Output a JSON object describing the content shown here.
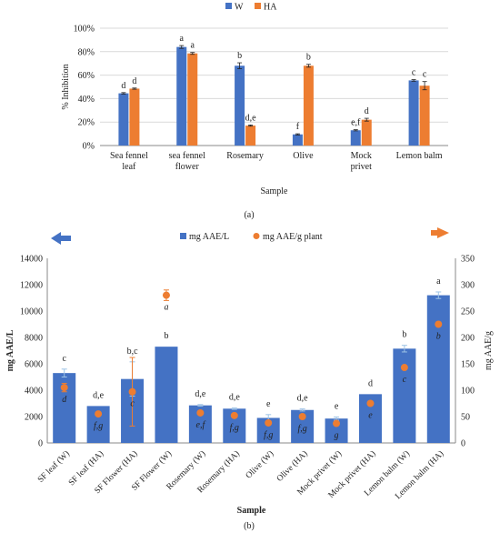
{
  "chart_data": [
    {
      "type": "bar",
      "panel_label": "(a)",
      "legend": {
        "placement": "top-center",
        "entries": [
          "W",
          "HA"
        ]
      },
      "xlabel": "Sample",
      "ylabel": "% Inhibition",
      "ylim": [
        0,
        100
      ],
      "ytick_step": 20,
      "ytick_suffix": "%",
      "grid": true,
      "categories": [
        "Sea fennel leaf",
        "sea fennel flower",
        "Rosemary",
        "Olive",
        "Mock privet",
        "Lemon balm"
      ],
      "series": [
        {
          "name": "W",
          "color": "#4472c4",
          "values": [
            44.5,
            84.0,
            68.0,
            9.5,
            13.0,
            55.5
          ],
          "errors": [
            0.6,
            1.2,
            2.5,
            0.5,
            0.5,
            0.7
          ],
          "letters": [
            "d",
            "a",
            "b",
            "f",
            "e,f",
            "c"
          ]
        },
        {
          "name": "HA",
          "color": "#ed7d31",
          "values": [
            48.5,
            78.5,
            17.0,
            68.0,
            22.0,
            51.0
          ],
          "errors": [
            0.5,
            0.8,
            0.5,
            1.2,
            1.2,
            3.5
          ],
          "letters": [
            "d",
            "a",
            "d,e",
            "b",
            "d",
            "c"
          ]
        }
      ]
    },
    {
      "type": "bar+scatter",
      "panel_label": "(b)",
      "legend": {
        "placement": "top-center",
        "entries": [
          "mg AAE/L",
          "mg AAE/g plant"
        ]
      },
      "xlabel": "Sample",
      "ylabel_left": "mg AAE/L",
      "ylabel_right": "mg AAE/g",
      "ylim_left": [
        0,
        14000
      ],
      "ytick_step_left": 2000,
      "ylim_right": [
        0,
        350
      ],
      "ytick_step_right": 50,
      "grid": false,
      "categories": [
        "SF leaf  (W)",
        "SF leaf  (HA)",
        "SF Flower (HA)",
        "SF Flower (W)",
        "Rosemary (W)",
        "Rosemary (HA)",
        "Olive  (W)",
        "Olive (HA)",
        "Mock privet  (W)",
        "Mock privet (HA)",
        "Lemon balm  (W)",
        "Lemon balm  (HA)"
      ],
      "series": [
        {
          "name": "mg AAE/L",
          "axis": "left",
          "color": "#4472c4",
          "values": [
            5300,
            2800,
            4850,
            7300,
            2850,
            2600,
            1900,
            2500,
            1850,
            3700,
            7150,
            11200
          ],
          "errors": [
            300,
            0,
            1300,
            0,
            60,
            50,
            250,
            80,
            120,
            0,
            250,
            250
          ],
          "letters": [
            "c",
            "d,e",
            "b,c",
            "b",
            "d,e",
            "d,e",
            "e",
            "d,e",
            "e",
            "d",
            "b",
            "a"
          ]
        },
        {
          "name": "mg AAE/g plant",
          "axis": "right",
          "color": "#ed7d31",
          "values": [
            105,
            55,
            97,
            280,
            57,
            52,
            38,
            50,
            37,
            75,
            143,
            225
          ],
          "errors": [
            8,
            0,
            65,
            10,
            0,
            0,
            0,
            0,
            0,
            0,
            0,
            0
          ],
          "letters": [
            "d",
            "f,g",
            "c",
            "a",
            "e,f",
            "f,g",
            "f,g",
            "f,g",
            "g",
            "e",
            "c",
            "b"
          ]
        }
      ]
    }
  ]
}
